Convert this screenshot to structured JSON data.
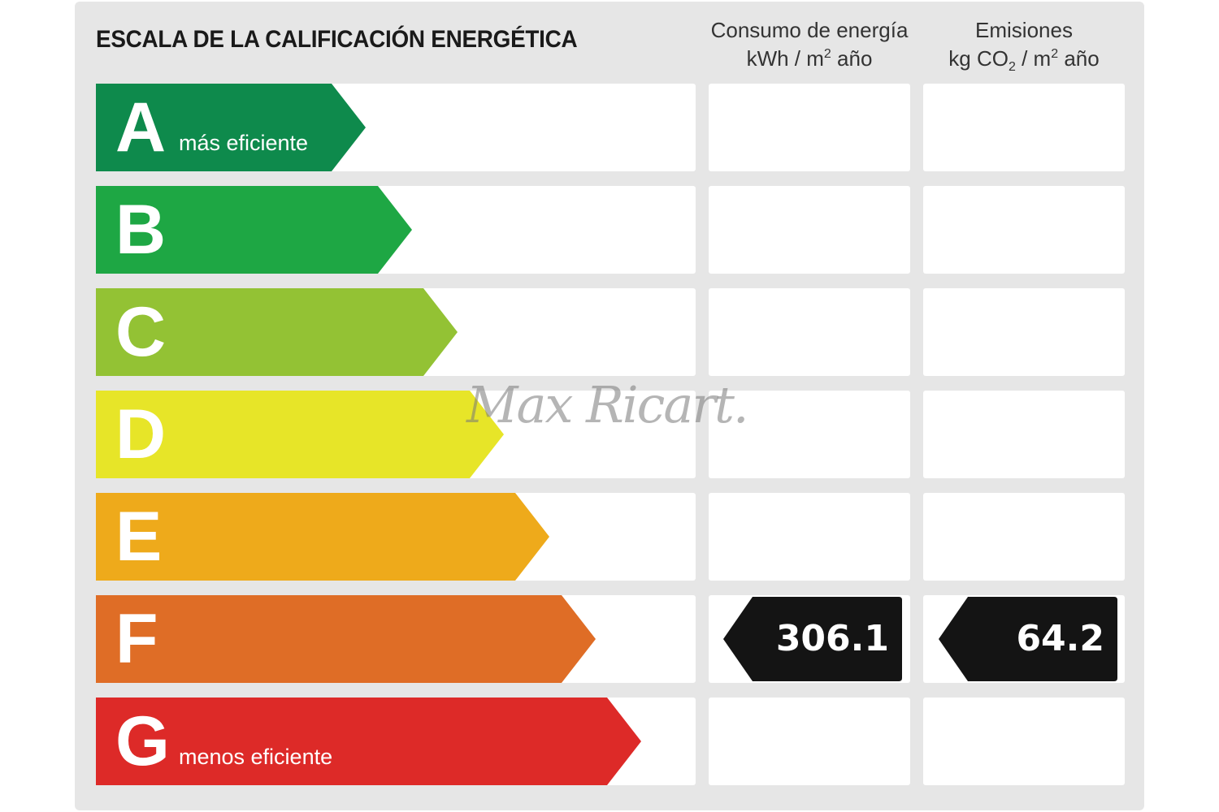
{
  "title": "ESCALA DE LA CALIFICACIÓN ENERGÉTICA",
  "columns": {
    "energy": {
      "line1": "Consumo de energía",
      "unit_a": "kWh / m",
      "sup": "2",
      "unit_b": " año"
    },
    "emissions": {
      "line1": "Emisiones",
      "unit_a": "kg CO",
      "sub": "2",
      "unit_b": " / m",
      "sup": "2",
      "unit_c": " año"
    }
  },
  "chart_data": {
    "type": "bar",
    "categories": [
      "A",
      "B",
      "C",
      "D",
      "E",
      "F",
      "G"
    ],
    "band_labels": {
      "A": "más eficiente",
      "G": "menos eficiente"
    },
    "colors": [
      "#0e8a4c",
      "#1ea744",
      "#93c234",
      "#e7e528",
      "#eeaa1b",
      "#df6d26",
      "#dd2a28"
    ],
    "rating": "F",
    "energy_consumption": 306.1,
    "emissions": 64.2,
    "energy_consumption_label": "306.1",
    "emissions_label": "64.2"
  },
  "watermark": "Max Ricart."
}
